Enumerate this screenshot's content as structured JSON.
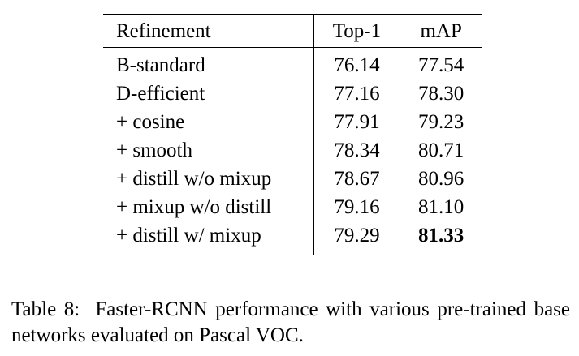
{
  "table": {
    "headers": [
      "Refinement",
      "Top-1",
      "mAP"
    ],
    "rows": [
      {
        "refinement": "B-standard",
        "top1": "76.14",
        "map": "77.54"
      },
      {
        "refinement": "D-efficient",
        "top1": "77.16",
        "map": "78.30"
      },
      {
        "refinement": "+ cosine",
        "top1": "77.91",
        "map": "79.23"
      },
      {
        "refinement": "+ smooth",
        "top1": "78.34",
        "map": "80.71"
      },
      {
        "refinement": "+ distill w/o mixup",
        "top1": "78.67",
        "map": "80.96"
      },
      {
        "refinement": "+ mixup w/o distill",
        "top1": "79.16",
        "map": "81.10"
      },
      {
        "refinement": "+ distill w/ mixup",
        "top1": "79.29",
        "map": "81.33"
      }
    ],
    "bold_cell": "rows.6.map"
  },
  "caption": {
    "label": "Table 8:",
    "text": "Faster-RCNN performance with various pre-trained base networks evaluated on Pascal VOC."
  }
}
